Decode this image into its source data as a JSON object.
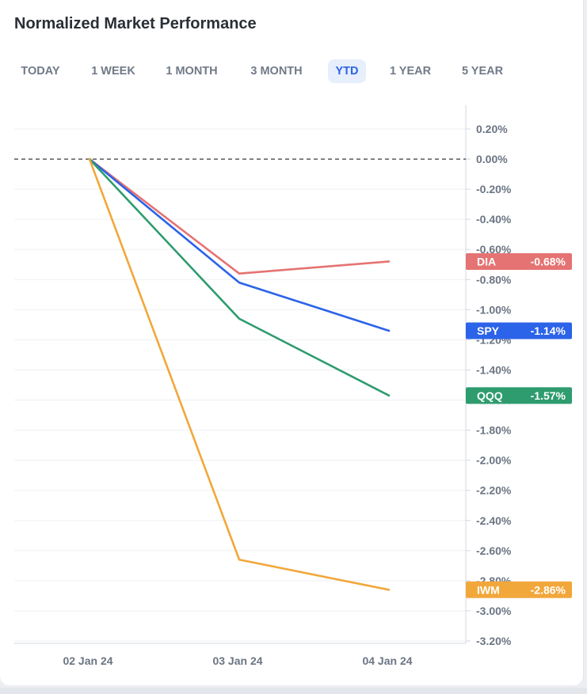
{
  "title": "Normalized Market Performance",
  "tabs": [
    {
      "label": "TODAY",
      "active": false
    },
    {
      "label": "1 WEEK",
      "active": false
    },
    {
      "label": "1 MONTH",
      "active": false
    },
    {
      "label": "3 MONTH",
      "active": false
    },
    {
      "label": "YTD",
      "active": true
    },
    {
      "label": "1 YEAR",
      "active": false
    },
    {
      "label": "5 YEAR",
      "active": false
    }
  ],
  "colors": {
    "accent": "#2b63e9",
    "DIA": "#e57373",
    "SPY": "#2b63e9",
    "QQQ": "#2e9c6e",
    "IWM": "#f2a73b"
  },
  "chart_data": {
    "type": "line",
    "categories": [
      "02 Jan 24",
      "03 Jan 24",
      "04 Jan 24"
    ],
    "series": [
      {
        "name": "DIA",
        "values": [
          0.0,
          -0.76,
          -0.68
        ],
        "label": "-0.68%"
      },
      {
        "name": "SPY",
        "values": [
          0.0,
          -0.82,
          -1.14
        ],
        "label": "-1.14%"
      },
      {
        "name": "QQQ",
        "values": [
          0.0,
          -1.06,
          -1.57
        ],
        "label": "-1.57%"
      },
      {
        "name": "IWM",
        "values": [
          0.0,
          -2.66,
          -2.86
        ],
        "label": "-2.86%"
      }
    ],
    "yticks": [
      "0.20%",
      "0.00%",
      "-0.20%",
      "-0.40%",
      "-0.60%",
      "-0.80%",
      "-1.00%",
      "-1.20%",
      "-1.40%",
      "-1.60%",
      "-1.80%",
      "-2.00%",
      "-2.20%",
      "-2.40%",
      "-2.60%",
      "-2.80%",
      "-3.00%",
      "-3.20%"
    ],
    "ytick_values": [
      0.2,
      0.0,
      -0.2,
      -0.4,
      -0.6,
      -0.8,
      -1.0,
      -1.2,
      -1.4,
      -1.6,
      -1.8,
      -2.0,
      -2.2,
      -2.4,
      -2.6,
      -2.8,
      -3.0,
      -3.2
    ],
    "ylim": [
      -3.2,
      0.2
    ],
    "baseline": 0.0,
    "grid": true,
    "axis_position": "right"
  }
}
